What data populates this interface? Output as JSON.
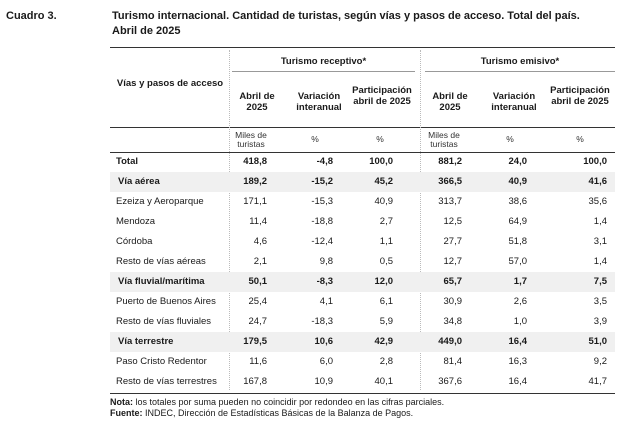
{
  "cuadro": "Cuadro 3.",
  "title_line1": "Turismo internacional. Cantidad de turistas, según vías y pasos de acceso. Total del país.",
  "title_line2": "Abril de 2025",
  "header": {
    "row_label": "Vías y pasos de acceso",
    "group_receptivo": "Turismo receptivo*",
    "group_emisivo": "Turismo emisivo*",
    "col_abril": "Abril de 2025",
    "col_variacion": "Variación interanual",
    "col_participacion": "Participación abril de 2025",
    "unit_miles": "Miles de turistas",
    "unit_pct": "%"
  },
  "rows": [
    {
      "label": "Total",
      "bold": true,
      "shade": false,
      "values": [
        "418,8",
        "-4,8",
        "100,0",
        "881,2",
        "24,0",
        "100,0"
      ]
    },
    {
      "label": "Vía aérea",
      "bold": true,
      "shade": true,
      "values": [
        "189,2",
        "-15,2",
        "45,2",
        "366,5",
        "40,9",
        "41,6"
      ]
    },
    {
      "label": "Ezeiza y Aeroparque",
      "bold": false,
      "shade": false,
      "values": [
        "171,1",
        "-15,3",
        "40,9",
        "313,7",
        "38,6",
        "35,6"
      ]
    },
    {
      "label": "Mendoza",
      "bold": false,
      "shade": false,
      "values": [
        "11,4",
        "-18,8",
        "2,7",
        "12,5",
        "64,9",
        "1,4"
      ]
    },
    {
      "label": "Córdoba",
      "bold": false,
      "shade": false,
      "values": [
        "4,6",
        "-12,4",
        "1,1",
        "27,7",
        "51,8",
        "3,1"
      ]
    },
    {
      "label": "Resto de vías aéreas",
      "bold": false,
      "shade": false,
      "values": [
        "2,1",
        "9,8",
        "0,5",
        "12,7",
        "57,0",
        "1,4"
      ]
    },
    {
      "label": "Vía fluvial/marítima",
      "bold": true,
      "shade": true,
      "values": [
        "50,1",
        "-8,3",
        "12,0",
        "65,7",
        "1,7",
        "7,5"
      ]
    },
    {
      "label": "Puerto de Buenos Aires",
      "bold": false,
      "shade": false,
      "values": [
        "25,4",
        "4,1",
        "6,1",
        "30,9",
        "2,6",
        "3,5"
      ]
    },
    {
      "label": "Resto de vías fluviales",
      "bold": false,
      "shade": false,
      "values": [
        "24,7",
        "-18,3",
        "5,9",
        "34,8",
        "1,0",
        "3,9"
      ]
    },
    {
      "label": "Vía terrestre",
      "bold": true,
      "shade": true,
      "values": [
        "179,5",
        "10,6",
        "42,9",
        "449,0",
        "16,4",
        "51,0"
      ]
    },
    {
      "label": "Paso Cristo Redentor",
      "bold": false,
      "shade": false,
      "values": [
        "11,6",
        "6,0",
        "2,8",
        "81,4",
        "16,3",
        "9,2"
      ]
    },
    {
      "label": "Resto de vías terrestres",
      "bold": false,
      "shade": false,
      "values": [
        "167,8",
        "10,9",
        "40,1",
        "367,6",
        "16,4",
        "41,7"
      ]
    }
  ],
  "notes": {
    "nota_label": "Nota:",
    "nota_text": " los totales por suma pueden no coincidir por redondeo en las cifras parciales.",
    "fuente_label": "Fuente:",
    "fuente_text": " INDEC, Dirección de Estadísticas Básicas de la Balanza de Pagos."
  }
}
